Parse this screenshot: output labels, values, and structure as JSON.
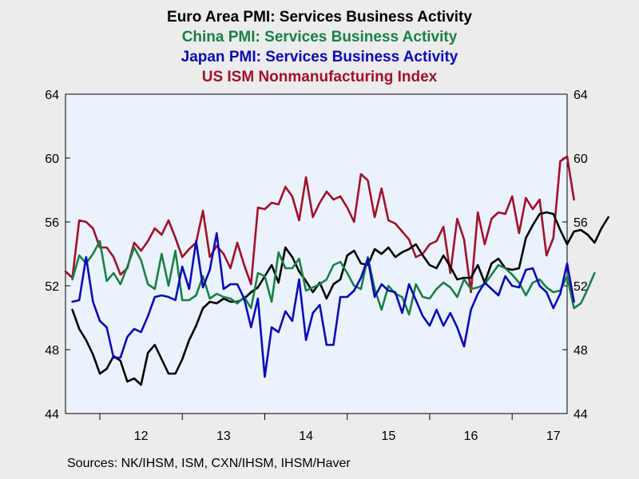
{
  "titles": [
    {
      "text": "Euro Area PMI: Services Business Activity",
      "color": "#000000"
    },
    {
      "text": "China PMI: Services Business Activity",
      "color": "#1a8046"
    },
    {
      "text": "Japan PMI: Services Business Activity",
      "color": "#0a0ab4"
    },
    {
      "text": "US ISM Nonmanufacturing Index",
      "color": "#a0102a"
    }
  ],
  "source": "Sources:  NK/IHSM, ISM, CXN/IHSM, IHSM/Haver",
  "colors": {
    "plot_background": "#eaf2fc",
    "page_background": "#ececec"
  },
  "chart_data": {
    "type": "line",
    "x_start": "2011-08",
    "x_end": "2017-09",
    "x_ticks": [
      {
        "label": "12",
        "date": "2012-07"
      },
      {
        "label": "13",
        "date": "2013-07"
      },
      {
        "label": "14",
        "date": "2014-07"
      },
      {
        "label": "15",
        "date": "2015-07"
      },
      {
        "label": "16",
        "date": "2016-07"
      },
      {
        "label": "17",
        "date": "2017-07"
      }
    ],
    "ylim": [
      44,
      64
    ],
    "y_ticks": [
      44,
      48,
      52,
      56,
      60,
      64
    ],
    "y_axis_both_sides": true,
    "grid": false,
    "legend": "none",
    "series": [
      {
        "name": "US ISM Nonmanufacturing Index",
        "color": "#a0102a",
        "start": "2011-08",
        "values": [
          52.9,
          52.5,
          56.1,
          56.0,
          55.6,
          54.4,
          54.4,
          53.8,
          52.7,
          53.1,
          54.7,
          54.2,
          54.8,
          55.6,
          55.2,
          56.1,
          55.0,
          53.8,
          54.3,
          54.7,
          56.7,
          53.8,
          54.5,
          54.0,
          53.1,
          54.7,
          53.3,
          52.1,
          56.9,
          56.8,
          57.2,
          57.1,
          58.2,
          57.6,
          56.1,
          58.8,
          56.3,
          57.2,
          57.9,
          57.4,
          57.6,
          56.9,
          56.0,
          59.0,
          58.6,
          56.3,
          58.1,
          56.1,
          55.9,
          55.4,
          54.9,
          53.8,
          54.0,
          54.6,
          54.8,
          55.7,
          52.8,
          56.2,
          54.9,
          51.6,
          56.6,
          54.6,
          56.2,
          56.6,
          56.5,
          57.6,
          55.3,
          57.5,
          56.8,
          57.4,
          53.9,
          55.0,
          59.8,
          60.1,
          57.4
        ]
      },
      {
        "name": "Euro Area PMI: Services Business Activity",
        "color": "#000000",
        "start": "2011-09",
        "values": [
          50.5,
          49.3,
          48.6,
          47.7,
          46.5,
          46.8,
          47.6,
          47.3,
          46.0,
          46.2,
          45.8,
          47.8,
          48.3,
          47.4,
          46.5,
          46.5,
          47.4,
          48.6,
          49.5,
          50.6,
          51.0,
          50.9,
          51.2,
          51.0,
          51.0,
          51.2,
          51.6,
          51.9,
          52.6,
          53.3,
          52.2,
          54.4,
          53.8,
          52.9,
          52.3,
          51.6,
          52.2,
          51.2,
          52.1,
          52.4,
          53.9,
          54.2,
          53.4,
          53.3,
          54.3,
          54.0,
          54.4,
          53.8,
          54.1,
          54.3,
          54.6,
          53.9,
          53.3,
          53.1,
          53.9,
          53.2,
          52.4,
          52.5,
          52.5,
          53.3,
          52.2,
          53.4,
          53.7,
          53.1,
          53.0,
          53.1,
          55.0,
          55.8,
          56.5,
          56.6,
          56.5,
          55.5,
          54.6,
          55.4,
          55.5,
          55.2,
          54.7,
          55.6,
          56.3
        ]
      },
      {
        "name": "China PMI: Services Business Activity",
        "color": "#1a8046",
        "start": "2011-09",
        "values": [
          52.4,
          53.9,
          53.4,
          54.0,
          54.8,
          52.3,
          52.8,
          52.1,
          53.2,
          54.4,
          53.6,
          52.1,
          51.8,
          54.0,
          52.0,
          54.2,
          51.1,
          51.1,
          51.4,
          52.6,
          51.2,
          51.5,
          51.3,
          51.2,
          50.9,
          51.3,
          50.6,
          52.8,
          52.6,
          51.0,
          54.1,
          53.1,
          53.1,
          53.7,
          51.7,
          51.9,
          52.1,
          52.4,
          53.3,
          53.5,
          52.8,
          52.0,
          51.8,
          53.8,
          51.8,
          50.5,
          52.0,
          51.5,
          51.3,
          50.2,
          52.1,
          51.3,
          51.2,
          51.8,
          52.2,
          51.9,
          51.3,
          52.4,
          51.8,
          51.9,
          52.1,
          52.7,
          53.3,
          53.1,
          52.7,
          52.2,
          51.4,
          52.2,
          52.4,
          51.9,
          51.6,
          51.7,
          52.6,
          50.6,
          50.9,
          51.8,
          52.8
        ]
      },
      {
        "name": "Japan PMI: Services Business Activity",
        "color": "#0a0ab4",
        "start": "2011-09",
        "values": [
          51.0,
          51.1,
          53.8,
          51.0,
          49.8,
          49.4,
          47.5,
          47.5,
          48.8,
          49.3,
          49.1,
          50.1,
          51.3,
          51.4,
          51.3,
          51.1,
          53.2,
          51.8,
          54.8,
          51.9,
          53.0,
          55.3,
          51.8,
          52.1,
          52.1,
          51.2,
          49.4,
          51.2,
          46.3,
          49.4,
          49.1,
          50.4,
          49.8,
          52.4,
          48.6,
          50.3,
          50.8,
          48.3,
          48.3,
          51.3,
          51.3,
          51.7,
          52.5,
          53.7,
          51.3,
          52.1,
          51.7,
          51.6,
          50.3,
          52.1,
          51.1,
          50.1,
          49.5,
          50.5,
          49.5,
          50.3,
          49.4,
          48.2,
          50.5,
          51.5,
          52.2,
          51.8,
          51.4,
          52.6,
          52.0,
          51.9,
          53.0,
          53.1,
          52.0,
          51.6,
          50.6,
          51.5,
          53.4,
          51.0
        ]
      }
    ]
  }
}
